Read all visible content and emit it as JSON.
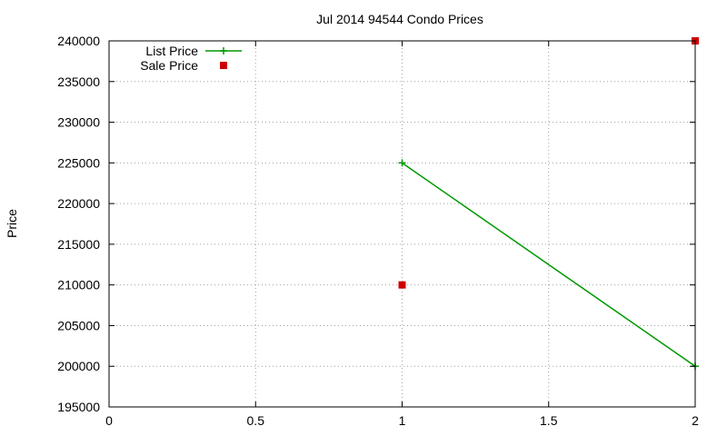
{
  "chart_data": {
    "type": "line",
    "title": "Jul 2014 94544 Condo Prices",
    "xlabel": "",
    "ylabel": "Price",
    "xlim": [
      0,
      2
    ],
    "ylim": [
      195000,
      240000
    ],
    "xticks": [
      0,
      0.5,
      1,
      1.5,
      2
    ],
    "xtick_labels": [
      "0",
      "0.5",
      "1",
      "1.5",
      "2"
    ],
    "yticks": [
      195000,
      200000,
      205000,
      210000,
      215000,
      220000,
      225000,
      230000,
      235000,
      240000
    ],
    "ytick_labels": [
      "195000",
      "200000",
      "205000",
      "210000",
      "215000",
      "220000",
      "225000",
      "230000",
      "235000",
      "240000"
    ],
    "grid": true,
    "legend_position": "top-left",
    "series": [
      {
        "name": "List Price",
        "style": "linespoints",
        "marker": "plus",
        "color": "#009900",
        "x": [
          1,
          2
        ],
        "y": [
          225000,
          200000
        ]
      },
      {
        "name": "Sale Price",
        "style": "points",
        "marker": "square",
        "color": "#cc0000",
        "x": [
          1,
          2
        ],
        "y": [
          210000,
          240000
        ]
      }
    ]
  }
}
